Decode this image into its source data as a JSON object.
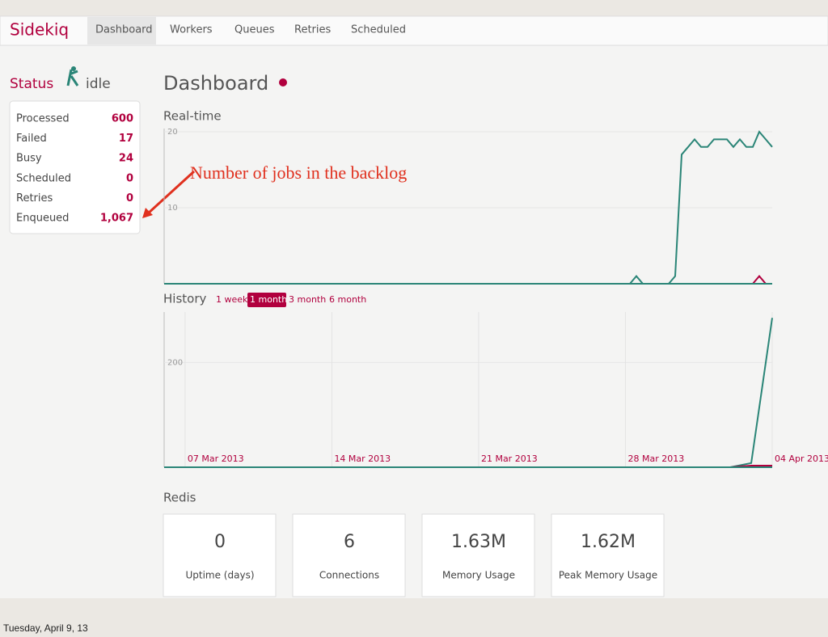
{
  "nav": {
    "brand": "Sidekiq",
    "items": [
      "Dashboard",
      "Workers",
      "Queues",
      "Retries",
      "Scheduled"
    ]
  },
  "status": {
    "label": "Status",
    "state": "idle"
  },
  "stats": [
    {
      "label": "Processed",
      "value": "600"
    },
    {
      "label": "Failed",
      "value": "17"
    },
    {
      "label": "Busy",
      "value": "24"
    },
    {
      "label": "Scheduled",
      "value": "0"
    },
    {
      "label": "Retries",
      "value": "0"
    },
    {
      "label": "Enqueued",
      "value": "1,067"
    }
  ],
  "annotation": "Number of jobs in the backlog",
  "heading": "Dashboard",
  "realtime_chart": {
    "type": "line",
    "title": "Real-time",
    "ylim": [
      0,
      20
    ],
    "yticks": [
      10,
      20
    ],
    "series": [
      {
        "color": "#2a8577",
        "values": [
          0,
          0,
          0,
          0,
          0,
          0,
          0,
          0,
          0,
          0,
          0,
          0,
          0,
          0,
          0,
          0,
          0,
          0,
          0,
          0,
          0,
          0,
          0,
          0,
          0,
          0,
          0,
          0,
          0,
          0,
          0,
          0,
          0,
          0,
          0,
          0,
          0,
          0,
          0,
          0,
          0,
          0,
          0,
          0,
          0,
          0,
          0,
          0,
          0,
          0,
          0,
          0,
          0,
          0,
          0,
          0,
          0,
          0,
          0,
          0,
          0,
          0,
          0,
          0,
          0,
          0,
          0,
          0,
          0,
          0,
          0,
          0,
          0,
          1,
          0,
          0,
          0,
          0,
          0,
          1,
          17,
          18,
          19,
          18,
          18,
          19,
          19,
          19,
          18,
          19,
          18,
          18,
          20,
          19,
          18
        ]
      },
      {
        "color": "#b1003e",
        "values": [
          0,
          0,
          0,
          0,
          0,
          0,
          0,
          0,
          0,
          0,
          0,
          0,
          0,
          0,
          0,
          0,
          0,
          0,
          0,
          0,
          0,
          0,
          0,
          0,
          0,
          0,
          0,
          0,
          0,
          0,
          0,
          0,
          0,
          0,
          0,
          0,
          0,
          0,
          0,
          0,
          0,
          0,
          0,
          0,
          0,
          0,
          0,
          0,
          0,
          0,
          0,
          0,
          0,
          0,
          0,
          0,
          0,
          0,
          0,
          0,
          0,
          0,
          0,
          0,
          0,
          0,
          0,
          0,
          0,
          0,
          0,
          0,
          0,
          0,
          0,
          0,
          0,
          0,
          0,
          0,
          0,
          0,
          0,
          0,
          0,
          0,
          0,
          0,
          0,
          0,
          0,
          0,
          1,
          0,
          0
        ]
      }
    ]
  },
  "history_chart": {
    "type": "line",
    "title": "History",
    "ranges": [
      "1 week",
      "1 month",
      "3 month",
      "6 month"
    ],
    "selected_range": "1 month",
    "categories": [
      null,
      "07 Mar 2013",
      null,
      null,
      null,
      null,
      null,
      null,
      "14 Mar 2013",
      null,
      null,
      null,
      null,
      null,
      null,
      "21 Mar 2013",
      null,
      null,
      null,
      null,
      null,
      null,
      "28 Mar 2013",
      null,
      null,
      null,
      null,
      null,
      null,
      "04 Apr 2013"
    ],
    "ylim": [
      0,
      290
    ],
    "yticks": [
      200
    ],
    "series": [
      {
        "color": "#2a8577",
        "values": [
          0,
          0,
          0,
          0,
          0,
          0,
          0,
          0,
          0,
          0,
          0,
          0,
          0,
          0,
          0,
          0,
          0,
          0,
          0,
          0,
          0,
          0,
          0,
          0,
          0,
          0,
          0,
          0,
          8,
          285
        ]
      },
      {
        "color": "#b1003e",
        "values": [
          0,
          0,
          0,
          0,
          0,
          0,
          0,
          0,
          0,
          0,
          0,
          0,
          0,
          0,
          0,
          0,
          0,
          0,
          0,
          0,
          0,
          0,
          0,
          0,
          0,
          0,
          0,
          0,
          3,
          3
        ]
      }
    ]
  },
  "redis": {
    "title": "Redis",
    "cards": [
      {
        "value": "0",
        "label": "Uptime (days)"
      },
      {
        "value": "6",
        "label": "Connections"
      },
      {
        "value": "1.63M",
        "label": "Memory Usage"
      },
      {
        "value": "1.62M",
        "label": "Peak Memory Usage"
      }
    ]
  },
  "footer": "Tuesday, April 9, 13"
}
